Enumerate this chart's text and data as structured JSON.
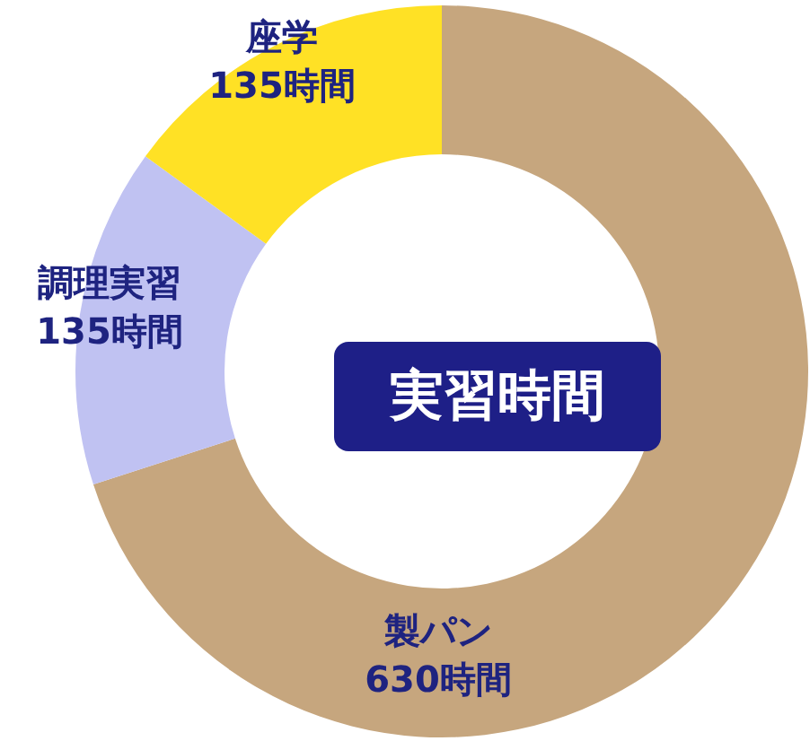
{
  "chart_data": {
    "type": "donut",
    "title": "実習時間",
    "categories": [
      "製パン",
      "調理実習",
      "座学"
    ],
    "values": [
      630,
      135,
      135
    ],
    "value_labels": [
      "630時間",
      "135時間",
      "135時間"
    ],
    "colors": [
      "#c6a67e",
      "#c0c2f2",
      "#ffe125"
    ]
  }
}
